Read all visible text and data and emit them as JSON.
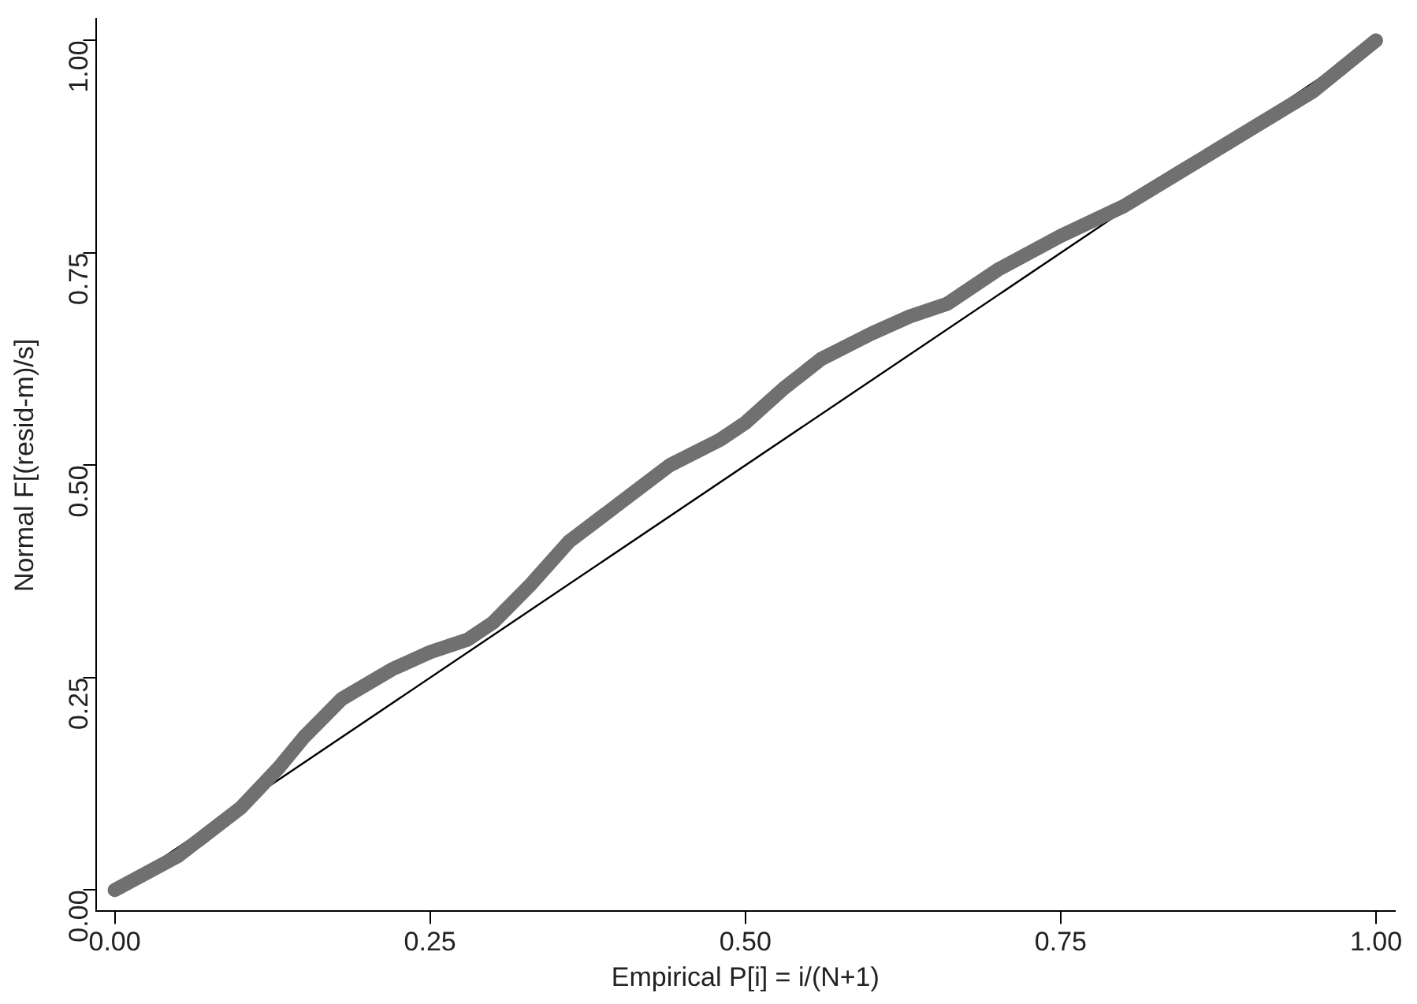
{
  "chart_data": {
    "type": "line",
    "xlabel": "Empirical P[i] = i/(N+1)",
    "ylabel": "Normal F[(resid-m)/s]",
    "xlim": [
      -0.015,
      1.015
    ],
    "ylim": [
      -0.025,
      1.025
    ],
    "xticks": [
      {
        "value": 0,
        "label": "0.00"
      },
      {
        "value": 0.25,
        "label": "0.25"
      },
      {
        "value": 0.5,
        "label": "0.50"
      },
      {
        "value": 0.75,
        "label": "0.75"
      },
      {
        "value": 1,
        "label": "1.00"
      }
    ],
    "yticks": [
      {
        "value": 0,
        "label": "0.00"
      },
      {
        "value": 0.25,
        "label": "0.25"
      },
      {
        "value": 0.5,
        "label": "0.50"
      },
      {
        "value": 0.75,
        "label": "0.75"
      },
      {
        "value": 1,
        "label": "1.00"
      }
    ],
    "grid": false,
    "legend": false,
    "series": [
      {
        "color": "#707070",
        "marker": "none",
        "x": [
          0,
          0.05,
          0.1,
          0.13,
          0.15,
          0.18,
          0.22,
          0.25,
          0.28,
          0.3,
          0.33,
          0.36,
          0.4,
          0.44,
          0.48,
          0.5,
          0.53,
          0.56,
          0.6,
          0.63,
          0.66,
          0.7,
          0.75,
          0.8,
          0.85,
          0.9,
          0.95,
          1
        ],
        "values": [
          0,
          0.04,
          0.097,
          0.144,
          0.18,
          0.225,
          0.26,
          0.28,
          0.295,
          0.315,
          0.36,
          0.41,
          0.455,
          0.5,
          0.53,
          0.55,
          0.59,
          0.625,
          0.655,
          0.675,
          0.69,
          0.73,
          0.77,
          0.805,
          0.85,
          0.895,
          0.94,
          1
        ]
      },
      {
        "color": "#000000",
        "marker": "none",
        "x": [
          0,
          1
        ],
        "values": [
          0,
          1
        ]
      }
    ]
  }
}
